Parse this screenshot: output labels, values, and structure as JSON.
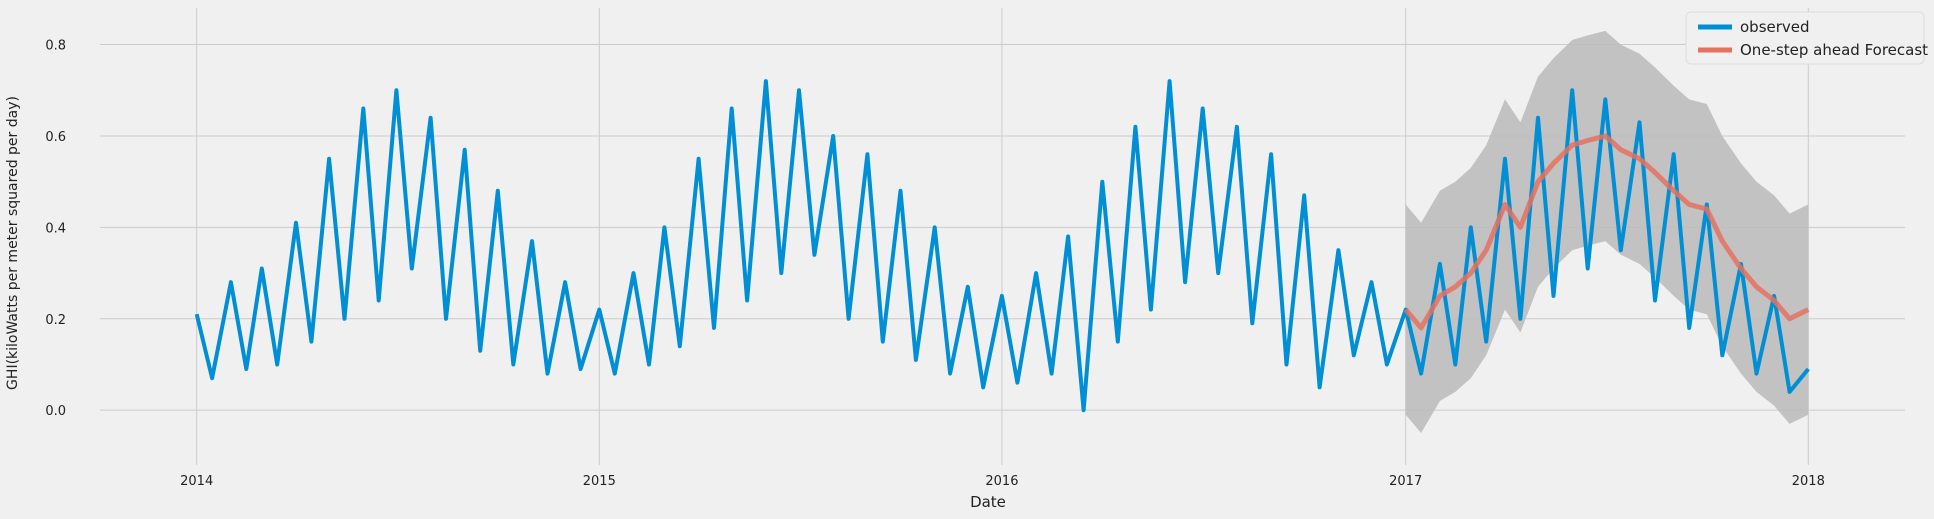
{
  "chart_data": {
    "type": "line",
    "title": "",
    "xlabel": "Date",
    "ylabel": "GHI(kiloWatts per meter squared per day)",
    "x_range": [
      "2014-01-01",
      "2018-01-01"
    ],
    "ylim": [
      -0.12,
      0.88
    ],
    "x_ticks": [
      "2014",
      "2015",
      "2016",
      "2017",
      "2018"
    ],
    "y_ticks": [
      "0.0",
      "0.2",
      "0.4",
      "0.6",
      "0.8"
    ],
    "grid": true,
    "legend_position": "top-right",
    "series": [
      {
        "name": "observed",
        "color": "#008fd5",
        "style": "daily values, seasonal oscillation",
        "points": [
          [
            "2014-01-01",
            0.21
          ],
          [
            "2014-01-15",
            0.07
          ],
          [
            "2014-02-01",
            0.28
          ],
          [
            "2014-02-15",
            0.09
          ],
          [
            "2014-03-01",
            0.31
          ],
          [
            "2014-03-15",
            0.1
          ],
          [
            "2014-04-01",
            0.41
          ],
          [
            "2014-04-15",
            0.15
          ],
          [
            "2014-05-01",
            0.55
          ],
          [
            "2014-05-15",
            0.2
          ],
          [
            "2014-06-01",
            0.66
          ],
          [
            "2014-06-15",
            0.24
          ],
          [
            "2014-07-01",
            0.7
          ],
          [
            "2014-07-15",
            0.31
          ],
          [
            "2014-08-01",
            0.64
          ],
          [
            "2014-08-15",
            0.2
          ],
          [
            "2014-09-01",
            0.57
          ],
          [
            "2014-09-15",
            0.13
          ],
          [
            "2014-10-01",
            0.48
          ],
          [
            "2014-10-15",
            0.1
          ],
          [
            "2014-11-01",
            0.37
          ],
          [
            "2014-11-15",
            0.08
          ],
          [
            "2014-12-01",
            0.28
          ],
          [
            "2014-12-15",
            0.09
          ],
          [
            "2015-01-01",
            0.22
          ],
          [
            "2015-01-15",
            0.08
          ],
          [
            "2015-02-01",
            0.3
          ],
          [
            "2015-02-15",
            0.1
          ],
          [
            "2015-03-01",
            0.4
          ],
          [
            "2015-03-15",
            0.14
          ],
          [
            "2015-04-01",
            0.55
          ],
          [
            "2015-04-15",
            0.18
          ],
          [
            "2015-05-01",
            0.66
          ],
          [
            "2015-05-15",
            0.24
          ],
          [
            "2015-06-01",
            0.72
          ],
          [
            "2015-06-15",
            0.3
          ],
          [
            "2015-07-01",
            0.7
          ],
          [
            "2015-07-15",
            0.34
          ],
          [
            "2015-08-01",
            0.6
          ],
          [
            "2015-08-15",
            0.2
          ],
          [
            "2015-09-01",
            0.56
          ],
          [
            "2015-09-15",
            0.15
          ],
          [
            "2015-10-01",
            0.48
          ],
          [
            "2015-10-15",
            0.11
          ],
          [
            "2015-11-01",
            0.4
          ],
          [
            "2015-11-15",
            0.08
          ],
          [
            "2015-12-01",
            0.27
          ],
          [
            "2015-12-15",
            0.05
          ],
          [
            "2016-01-01",
            0.25
          ],
          [
            "2016-01-15",
            0.06
          ],
          [
            "2016-02-01",
            0.3
          ],
          [
            "2016-02-15",
            0.08
          ],
          [
            "2016-03-01",
            0.38
          ],
          [
            "2016-03-15",
            0.0
          ],
          [
            "2016-04-01",
            0.5
          ],
          [
            "2016-04-15",
            0.15
          ],
          [
            "2016-05-01",
            0.62
          ],
          [
            "2016-05-15",
            0.22
          ],
          [
            "2016-06-01",
            0.72
          ],
          [
            "2016-06-15",
            0.28
          ],
          [
            "2016-07-01",
            0.66
          ],
          [
            "2016-07-15",
            0.3
          ],
          [
            "2016-08-01",
            0.62
          ],
          [
            "2016-08-15",
            0.19
          ],
          [
            "2016-09-01",
            0.56
          ],
          [
            "2016-09-15",
            0.1
          ],
          [
            "2016-10-01",
            0.47
          ],
          [
            "2016-10-15",
            0.05
          ],
          [
            "2016-11-01",
            0.35
          ],
          [
            "2016-11-15",
            0.12
          ],
          [
            "2016-12-01",
            0.28
          ],
          [
            "2016-12-15",
            0.1
          ],
          [
            "2017-01-01",
            0.22
          ],
          [
            "2017-01-15",
            0.08
          ],
          [
            "2017-02-01",
            0.32
          ],
          [
            "2017-02-15",
            0.1
          ],
          [
            "2017-03-01",
            0.4
          ],
          [
            "2017-03-15",
            0.15
          ],
          [
            "2017-04-01",
            0.55
          ],
          [
            "2017-04-15",
            0.2
          ],
          [
            "2017-05-01",
            0.64
          ],
          [
            "2017-05-15",
            0.25
          ],
          [
            "2017-06-01",
            0.7
          ],
          [
            "2017-06-15",
            0.31
          ],
          [
            "2017-07-01",
            0.68
          ],
          [
            "2017-07-15",
            0.35
          ],
          [
            "2017-08-01",
            0.63
          ],
          [
            "2017-08-15",
            0.24
          ],
          [
            "2017-09-01",
            0.56
          ],
          [
            "2017-09-15",
            0.18
          ],
          [
            "2017-10-01",
            0.45
          ],
          [
            "2017-10-15",
            0.12
          ],
          [
            "2017-11-01",
            0.32
          ],
          [
            "2017-11-15",
            0.08
          ],
          [
            "2017-12-01",
            0.25
          ],
          [
            "2017-12-15",
            0.04
          ],
          [
            "2018-01-01",
            0.09
          ]
        ]
      },
      {
        "name": "One-step ahead Forecast",
        "color": "#e5715f",
        "style": "smoothed forecast with confidence band",
        "points": [
          [
            "2017-01-01",
            0.22
          ],
          [
            "2017-01-15",
            0.18
          ],
          [
            "2017-02-01",
            0.25
          ],
          [
            "2017-02-15",
            0.27
          ],
          [
            "2017-03-01",
            0.3
          ],
          [
            "2017-03-15",
            0.35
          ],
          [
            "2017-04-01",
            0.45
          ],
          [
            "2017-04-15",
            0.4
          ],
          [
            "2017-05-01",
            0.5
          ],
          [
            "2017-05-15",
            0.54
          ],
          [
            "2017-06-01",
            0.58
          ],
          [
            "2017-06-15",
            0.59
          ],
          [
            "2017-07-01",
            0.6
          ],
          [
            "2017-07-15",
            0.57
          ],
          [
            "2017-08-01",
            0.55
          ],
          [
            "2017-08-15",
            0.52
          ],
          [
            "2017-09-01",
            0.48
          ],
          [
            "2017-09-15",
            0.45
          ],
          [
            "2017-10-01",
            0.44
          ],
          [
            "2017-10-15",
            0.37
          ],
          [
            "2017-11-01",
            0.31
          ],
          [
            "2017-11-15",
            0.27
          ],
          [
            "2017-12-01",
            0.24
          ],
          [
            "2017-12-15",
            0.2
          ],
          [
            "2018-01-01",
            0.22
          ]
        ],
        "confidence_halfwidth": 0.23,
        "band_color": "#bdbdbd"
      }
    ]
  },
  "axes": {
    "xlabel": "Date",
    "ylabel": "GHI(kiloWatts per meter squared per day)"
  },
  "legend": {
    "observed": "observed",
    "forecast": "One-step ahead Forecast"
  }
}
